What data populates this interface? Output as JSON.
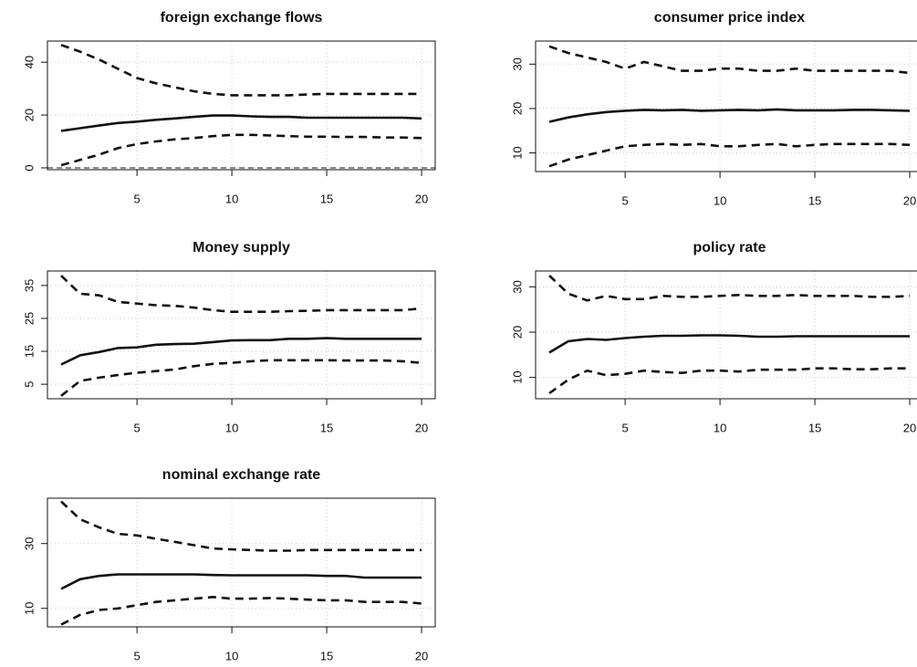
{
  "chart_data": [
    {
      "type": "line",
      "title": "foreign exchange flows",
      "x": [
        1,
        2,
        3,
        4,
        5,
        6,
        7,
        8,
        9,
        10,
        11,
        12,
        13,
        14,
        15,
        16,
        17,
        18,
        19,
        20
      ],
      "xlim": [
        0.28,
        20.72
      ],
      "xticks": [
        5,
        10,
        15,
        20
      ],
      "ylim": [
        -0.7,
        48
      ],
      "yticks": [
        0,
        20,
        40
      ],
      "grid": true,
      "hline": 0,
      "hline_color": "#888888",
      "series": [
        {
          "color": "#111111",
          "dash": true,
          "values": [
            46.5,
            44,
            41,
            37.5,
            34,
            32,
            30.5,
            29,
            28,
            27.5,
            27.5,
            27.5,
            27.5,
            27.8,
            28,
            28,
            28,
            28,
            28,
            28
          ]
        },
        {
          "color": "#111111",
          "dash": false,
          "values": [
            14,
            15,
            16,
            17,
            17.5,
            18.2,
            18.7,
            19.3,
            19.8,
            19.8,
            19.5,
            19.3,
            19.3,
            19,
            19,
            19,
            19,
            19,
            19,
            18.7
          ]
        },
        {
          "color": "#111111",
          "dash": true,
          "values": [
            1,
            3,
            5,
            7.5,
            9,
            10,
            10.8,
            11.3,
            12,
            12.5,
            12.5,
            12.3,
            12,
            11.8,
            11.8,
            11.7,
            11.7,
            11.5,
            11.5,
            11.3
          ]
        }
      ]
    },
    {
      "type": "line",
      "title": "consumer price index",
      "x": [
        1,
        2,
        3,
        4,
        5,
        6,
        7,
        8,
        9,
        10,
        11,
        12,
        13,
        14,
        15,
        16,
        17,
        18,
        19,
        20
      ],
      "xlim": [
        0.28,
        20.72
      ],
      "xticks": [
        5,
        10,
        15,
        20
      ],
      "ylim": [
        5.8,
        35.2
      ],
      "yticks": [
        10,
        20,
        30
      ],
      "grid": true,
      "series": [
        {
          "color": "#111111",
          "dash": true,
          "values": [
            34,
            32.5,
            31.5,
            30.5,
            29,
            30.5,
            29.5,
            28.5,
            28.5,
            29,
            29,
            28.5,
            28.5,
            29,
            28.5,
            28.5,
            28.5,
            28.5,
            28.5,
            28
          ]
        },
        {
          "color": "#111111",
          "dash": false,
          "values": [
            17,
            18,
            18.7,
            19.2,
            19.5,
            19.7,
            19.6,
            19.7,
            19.5,
            19.6,
            19.7,
            19.6,
            19.8,
            19.6,
            19.6,
            19.6,
            19.7,
            19.7,
            19.6,
            19.5
          ]
        },
        {
          "color": "#111111",
          "dash": true,
          "values": [
            7,
            8.5,
            9.5,
            10.5,
            11.5,
            11.8,
            12,
            11.8,
            12,
            11.5,
            11.5,
            11.8,
            12,
            11.5,
            11.8,
            12,
            12,
            12,
            12,
            11.8
          ]
        }
      ]
    },
    {
      "type": "line",
      "title": "Money supply",
      "x": [
        1,
        2,
        3,
        4,
        5,
        6,
        7,
        8,
        9,
        10,
        11,
        12,
        13,
        14,
        15,
        16,
        17,
        18,
        19,
        20
      ],
      "xlim": [
        0.28,
        20.72
      ],
      "xticks": [
        5,
        10,
        15,
        20
      ],
      "ylim": [
        0.6,
        39.4
      ],
      "yticks": [
        5,
        15,
        25,
        35
      ],
      "grid": true,
      "series": [
        {
          "color": "#111111",
          "dash": true,
          "values": [
            38,
            32.5,
            32,
            30,
            29.5,
            29,
            28.8,
            28.3,
            27.5,
            27,
            27,
            27,
            27.2,
            27.3,
            27.5,
            27.5,
            27.5,
            27.5,
            27.5,
            28
          ]
        },
        {
          "color": "#111111",
          "dash": false,
          "values": [
            11,
            13.8,
            14.8,
            16,
            16.2,
            17,
            17.2,
            17.3,
            17.8,
            18.3,
            18.4,
            18.4,
            18.8,
            18.8,
            19,
            18.8,
            18.8,
            18.8,
            18.8,
            18.8
          ]
        },
        {
          "color": "#111111",
          "dash": true,
          "values": [
            1.5,
            6,
            7,
            7.8,
            8.5,
            9,
            9.5,
            10.5,
            11.2,
            11.5,
            12,
            12.3,
            12.3,
            12.3,
            12.3,
            12.2,
            12.2,
            12.2,
            12,
            11.5
          ]
        }
      ]
    },
    {
      "type": "line",
      "title": "policy rate",
      "x": [
        1,
        2,
        3,
        4,
        5,
        6,
        7,
        8,
        9,
        10,
        11,
        12,
        13,
        14,
        15,
        16,
        17,
        18,
        19,
        20
      ],
      "xlim": [
        0.28,
        20.72
      ],
      "xticks": [
        5,
        10,
        15,
        20
      ],
      "ylim": [
        5.3,
        33.5
      ],
      "yticks": [
        10,
        20,
        30
      ],
      "grid": true,
      "series": [
        {
          "color": "#111111",
          "dash": true,
          "values": [
            32.5,
            28.5,
            27,
            28,
            27.3,
            27.3,
            28,
            27.8,
            27.8,
            28,
            28.2,
            28,
            28,
            28.2,
            28,
            28,
            28,
            27.8,
            27.8,
            28
          ]
        },
        {
          "color": "#111111",
          "dash": false,
          "values": [
            15.5,
            18,
            18.5,
            18.3,
            18.7,
            19,
            19.2,
            19.2,
            19.3,
            19.3,
            19.2,
            19,
            19,
            19.1,
            19.1,
            19.1,
            19.1,
            19.1,
            19.1,
            19.1
          ]
        },
        {
          "color": "#111111",
          "dash": true,
          "values": [
            6.5,
            9.5,
            11.5,
            10.5,
            10.8,
            11.5,
            11.2,
            11,
            11.5,
            11.5,
            11.3,
            11.7,
            11.7,
            11.7,
            12,
            12,
            11.8,
            11.8,
            12,
            12
          ]
        }
      ]
    },
    {
      "type": "line",
      "title": "nominal exchange rate",
      "x": [
        1,
        2,
        3,
        4,
        5,
        6,
        7,
        8,
        9,
        10,
        11,
        12,
        13,
        14,
        15,
        16,
        17,
        18,
        19,
        20
      ],
      "xlim": [
        0.28,
        20.72
      ],
      "xticks": [
        5,
        10,
        15,
        20
      ],
      "ylim": [
        4.3,
        44
      ],
      "yticks": [
        10,
        30
      ],
      "grid": true,
      "series": [
        {
          "color": "#111111",
          "dash": true,
          "values": [
            43,
            37.5,
            35,
            33,
            32.5,
            31.5,
            30.5,
            29.5,
            28.5,
            28.2,
            28,
            27.8,
            27.8,
            28,
            28,
            28,
            28,
            28,
            28,
            28
          ]
        },
        {
          "color": "#111111",
          "dash": false,
          "values": [
            16,
            19,
            20,
            20.5,
            20.5,
            20.5,
            20.5,
            20.5,
            20.3,
            20.2,
            20.2,
            20.2,
            20.2,
            20.2,
            20,
            20,
            19.5,
            19.5,
            19.5,
            19.5
          ]
        },
        {
          "color": "#111111",
          "dash": true,
          "values": [
            5,
            8,
            9.5,
            10,
            11,
            12,
            12.5,
            13,
            13.5,
            13,
            13,
            13.2,
            13,
            12.7,
            12.5,
            12.5,
            12,
            12,
            12,
            11.5
          ]
        }
      ]
    }
  ]
}
